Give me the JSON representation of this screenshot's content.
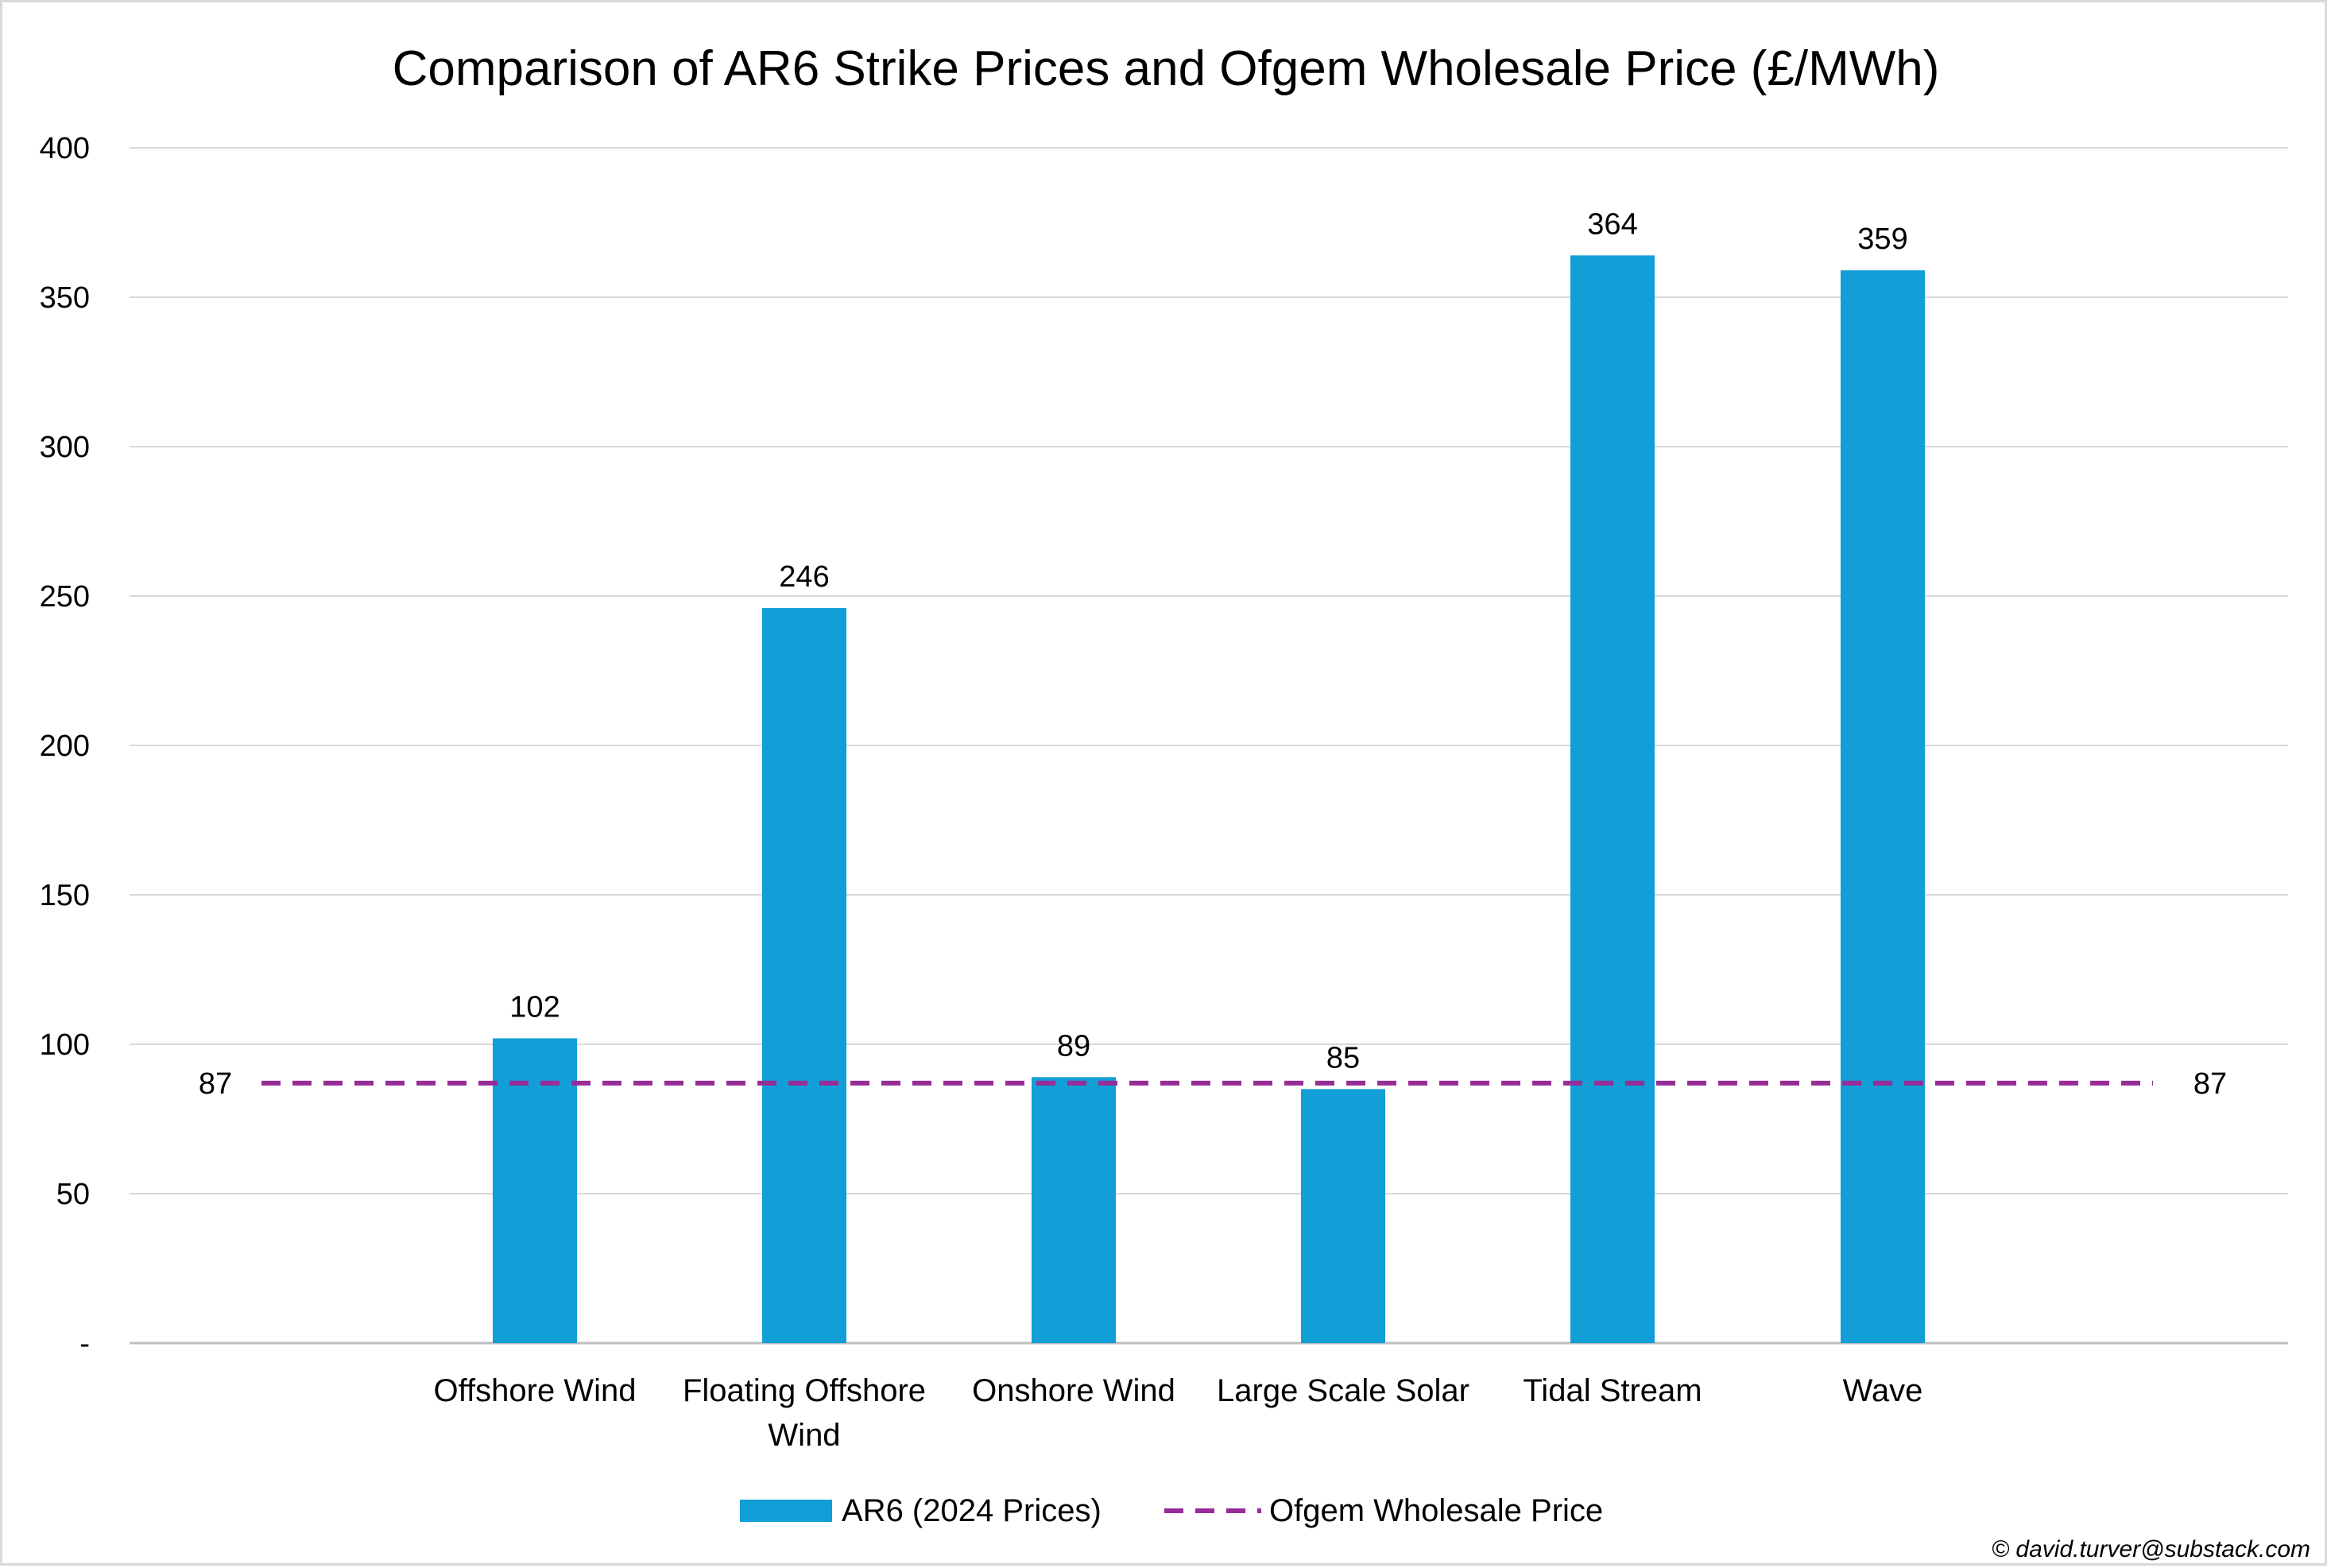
{
  "chart_data": {
    "type": "bar",
    "title": "Comparison of AR6 Strike Prices and Ofgem Wholesale Price (£/MWh)",
    "categories": [
      [
        "Offshore Wind"
      ],
      [
        "Floating Offshore",
        "Wind"
      ],
      [
        "Onshore Wind"
      ],
      [
        "Large Scale Solar"
      ],
      [
        "Tidal Stream"
      ],
      [
        "Wave"
      ]
    ],
    "series": [
      {
        "name": "AR6 (2024 Prices)",
        "type": "bar",
        "color": "#129ED6",
        "values": [
          102,
          246,
          89,
          85,
          364,
          359
        ],
        "labels": [
          "102",
          "246",
          "89",
          "85",
          "364",
          "359"
        ]
      },
      {
        "name": "Ofgem Wholesale Price",
        "type": "line",
        "style": "dashed",
        "color": "#982C98",
        "value": 87,
        "labels": [
          "87",
          "87"
        ]
      }
    ],
    "ylim": [
      0,
      400
    ],
    "yticks": [
      0,
      50,
      100,
      150,
      200,
      250,
      300,
      350,
      400
    ],
    "ytick_labels": [
      "-",
      "50",
      "100",
      "150",
      "200",
      "250",
      "300",
      "350",
      "400"
    ],
    "xlabel": "",
    "ylabel": "",
    "grid": true,
    "legend": "bottom"
  },
  "credit": "© david.turver@substack.com"
}
